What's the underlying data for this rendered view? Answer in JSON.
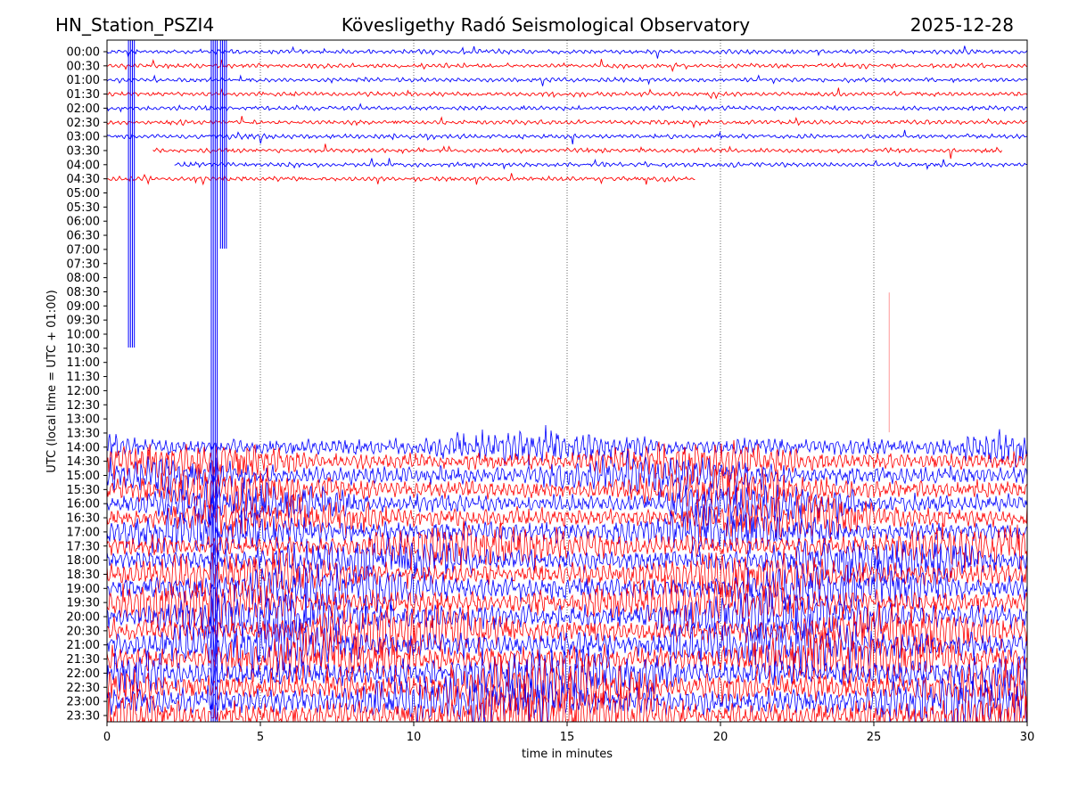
{
  "header": {
    "station": "HN_Station_PSZI4",
    "observatory": "Kövesligethy Radó Seismological Observatory",
    "date": "2025-12-28"
  },
  "colors": {
    "trace_a": "#0000ff",
    "trace_b": "#ff0000",
    "grid": "#000000",
    "background": "#ffffff"
  },
  "chart_data": {
    "type": "line",
    "title": "Kövesligethy Radó Seismological Observatory",
    "xlabel": "time in minutes",
    "ylabel": "UTC (local time = UTC + 01:00)",
    "xlim": [
      0,
      30
    ],
    "xticks": [
      0,
      5,
      10,
      15,
      20,
      25,
      30
    ],
    "vertical_grid_at": [
      5,
      10,
      15,
      20,
      25
    ],
    "yticks": [
      "00:00",
      "00:30",
      "01:00",
      "01:30",
      "02:00",
      "02:30",
      "03:00",
      "03:30",
      "04:00",
      "04:30",
      "05:00",
      "05:30",
      "06:00",
      "06:30",
      "07:00",
      "07:30",
      "08:00",
      "08:30",
      "09:00",
      "09:30",
      "10:00",
      "10:30",
      "11:00",
      "11:30",
      "12:00",
      "12:30",
      "13:00",
      "13:30",
      "14:00",
      "14:30",
      "15:00",
      "15:30",
      "16:00",
      "16:30",
      "17:00",
      "17:30",
      "18:00",
      "18:30",
      "19:00",
      "19:30",
      "20:00",
      "20:30",
      "21:00",
      "21:30",
      "22:00",
      "22:30",
      "23:00",
      "23:30"
    ],
    "trace_color_pattern": "alternating blue/red per 30-minute row, starting blue at 00:00",
    "activity": {
      "quiet_rows": "05:00 to 13:30 (no trace)",
      "partial_rows": [
        {
          "row": "03:30",
          "start_min": 1.5,
          "end_min": 29.2
        },
        {
          "row": "04:00",
          "start_min": 2.2,
          "end_min": 30
        },
        {
          "row": "04:30",
          "start_min": 0.0,
          "end_min": 19.2
        }
      ],
      "noisy_rows": "14:00 to 23:30 (high amplitude)"
    },
    "notable_spikes": [
      {
        "x_min": 0.7,
        "from": "00:00",
        "to": "10:00"
      },
      {
        "x_min": 3.4,
        "from": "00:00",
        "to": "23:30"
      },
      {
        "x_min": 3.7,
        "from": "00:00",
        "to": "06:30"
      },
      {
        "x_min": 25.5,
        "from": "09:00",
        "to": "13:00"
      }
    ]
  }
}
